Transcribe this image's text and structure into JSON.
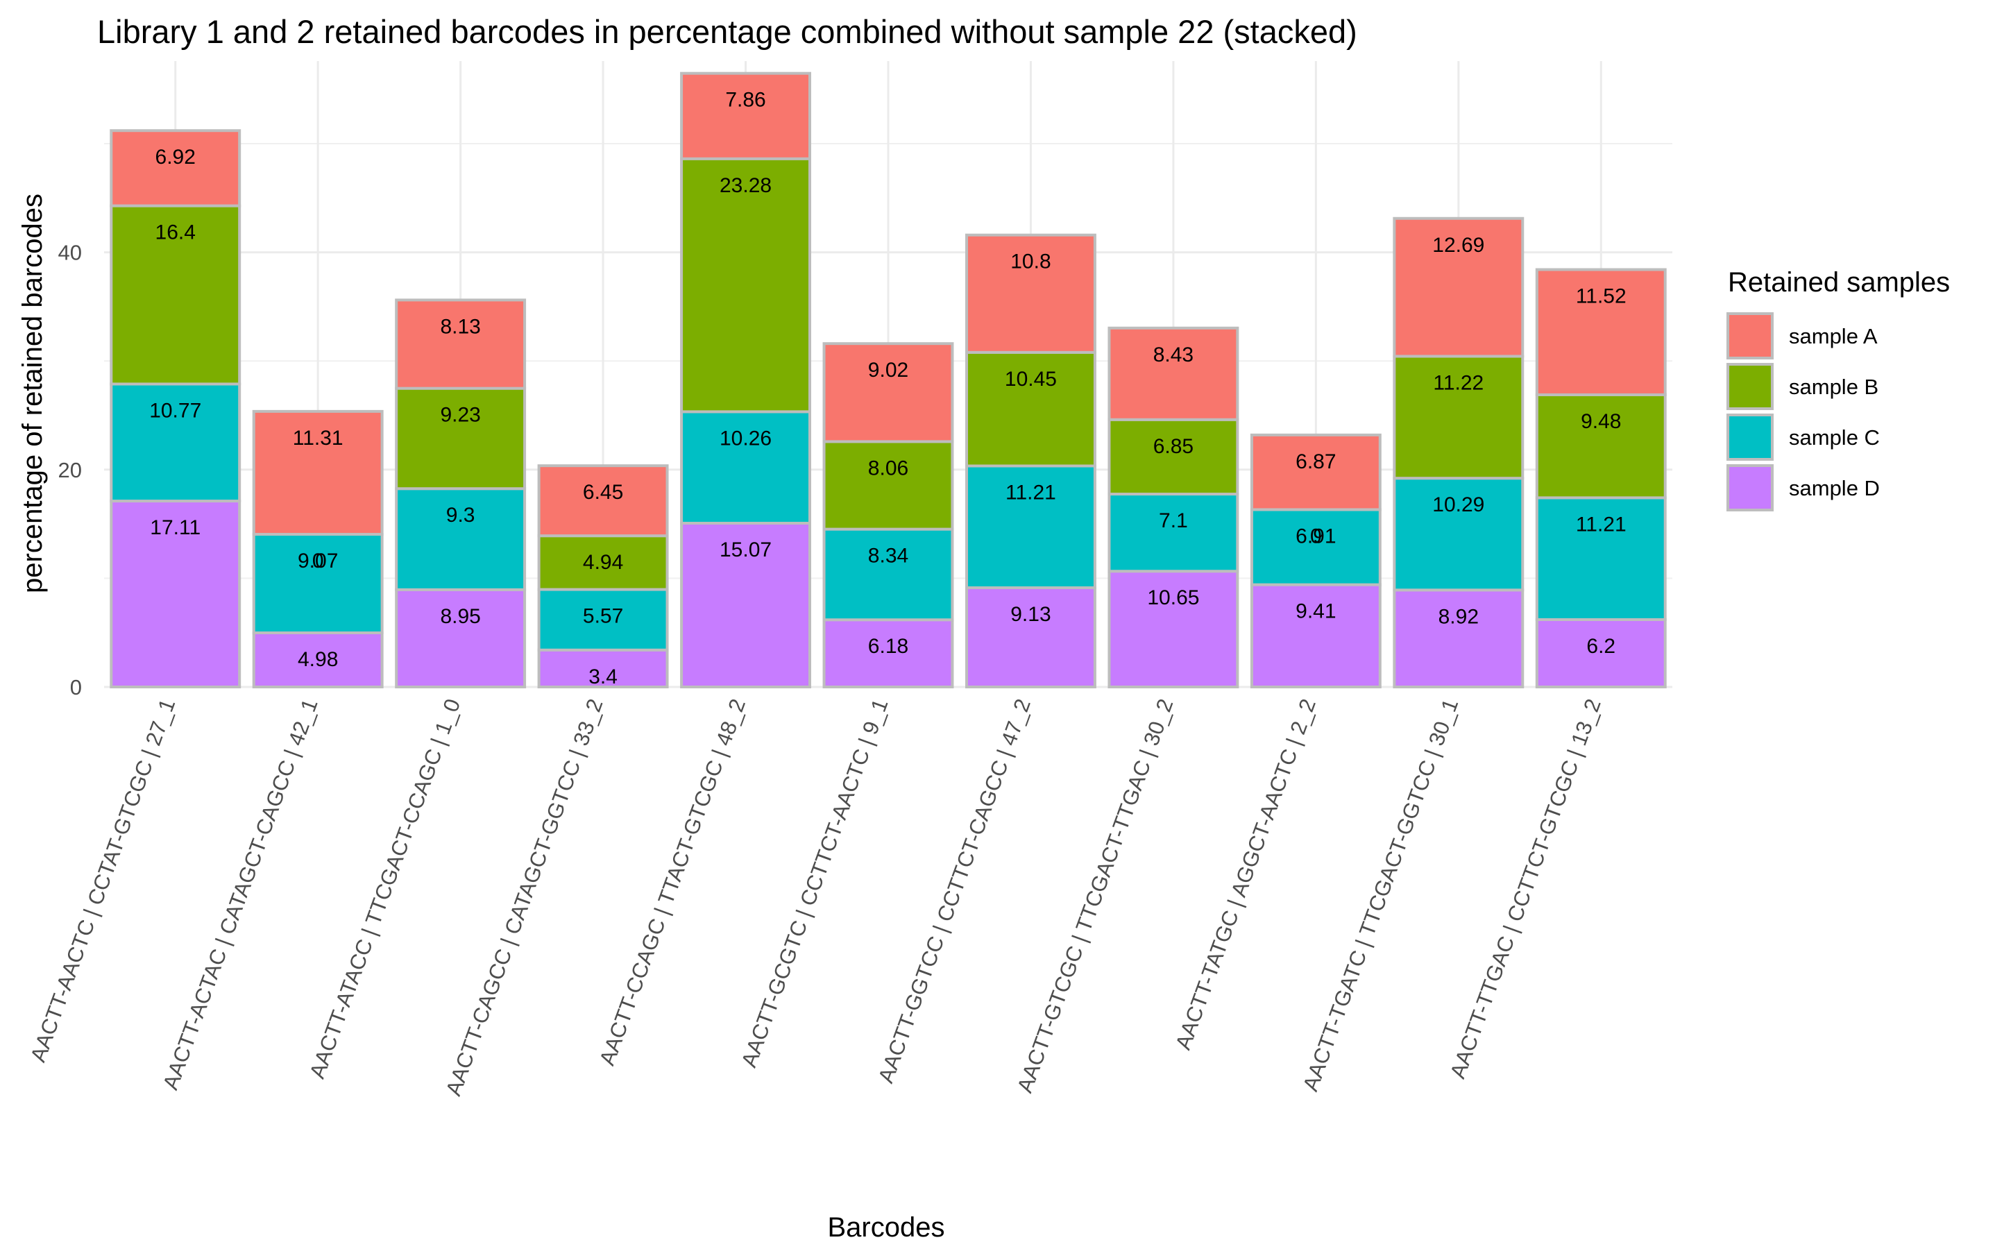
{
  "chart_data": {
    "type": "bar",
    "stacked": true,
    "title": "Library 1 and 2 retained barcodes in percentage combined without sample 22 (stacked)",
    "xlabel": "Barcodes",
    "ylabel": "percentage of retained barcodes",
    "ylim": [
      0,
      57.6
    ],
    "yticks": [
      0,
      20,
      40
    ],
    "grid": true,
    "legend": {
      "title": "Retained samples",
      "position": "right"
    },
    "categories": [
      "AACTT-AACTC | CCTAT-GTCGC | 27_1",
      "AACTT-ACTAC | CATAGCT-CAGCC | 42_1",
      "AACTT-ATACC | TTCGACT-CCAGC | 1_0",
      "AACTT-CAGCC | CATAGCT-GGTCC | 33_2",
      "AACTT-CCAGC | TTACT-GTCGC | 48_2",
      "AACTT-GCGTC | CCTTCT-AACTC | 9_1",
      "AACTT-GGTCC | CCTTCT-CAGCC | 47_2",
      "AACTT-GTCGC | TTCGACT-TTGAC | 30_2",
      "AACTT-TATGC | AGGCT-AACTC | 2_2",
      "AACTT-TGATC | TTCGACT-GGTCC | 30_1",
      "AACTT-TTGAC | CCTTCT-GTCGC | 13_2"
    ],
    "series": [
      {
        "name": "sample D",
        "color": "#C77CFF",
        "values": [
          17.11,
          4.98,
          8.95,
          3.4,
          15.07,
          6.18,
          9.13,
          10.65,
          9.41,
          8.92,
          6.2
        ],
        "labels": [
          "17.11",
          "4.98",
          "8.95",
          "3.4",
          "15.07",
          "6.18",
          "9.13",
          "10.65",
          "9.41",
          "8.92",
          "6.2"
        ]
      },
      {
        "name": "sample C",
        "color": "#00BFC4",
        "values": [
          10.77,
          9.07,
          9.3,
          5.57,
          10.26,
          8.34,
          11.21,
          7.1,
          6.91,
          10.29,
          11.21
        ],
        "labels": [
          "10.77",
          "9.07",
          "9.3",
          "5.57",
          "10.26",
          "8.34",
          "11.21",
          "7.1",
          "6.91",
          "10.29",
          "11.21"
        ]
      },
      {
        "name": "sample B",
        "color": "#7CAE00",
        "values": [
          16.4,
          0,
          9.23,
          4.94,
          23.28,
          8.06,
          10.45,
          6.85,
          0,
          11.22,
          9.48
        ],
        "labels": [
          "16.4",
          "0",
          "9.23",
          "4.94",
          "23.28",
          "8.06",
          "10.45",
          "6.85",
          "0",
          "11.22",
          "9.48"
        ]
      },
      {
        "name": "sample A",
        "color": "#F8766D",
        "values": [
          6.92,
          11.31,
          8.13,
          6.45,
          7.86,
          9.02,
          10.8,
          8.43,
          6.87,
          12.69,
          11.52
        ],
        "labels": [
          "6.92",
          "11.31",
          "8.13",
          "6.45",
          "7.86",
          "9.02",
          "10.8",
          "8.43",
          "6.87",
          "12.69",
          "11.52"
        ]
      }
    ]
  }
}
